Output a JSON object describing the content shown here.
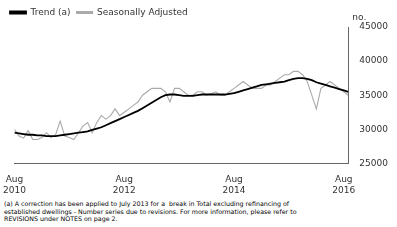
{
  "chart_data": {
    "type": "line",
    "ylabel": "no.",
    "footnote": "(a) A correction has been applied to July 2013 for a  break in Total excluding refinancing of\nestablished dwellings - Number series due to revisions. For more information, please refer to\nREVISIONS under NOTES on page 2.",
    "categories": [
      "Aug\n2010",
      null,
      null,
      null,
      null,
      null,
      null,
      null,
      null,
      null,
      null,
      null,
      null,
      null,
      null,
      null,
      null,
      null,
      null,
      null,
      null,
      null,
      null,
      null,
      "Aug\n2012",
      null,
      null,
      null,
      null,
      null,
      null,
      null,
      null,
      null,
      null,
      null,
      null,
      null,
      null,
      null,
      null,
      null,
      null,
      null,
      null,
      null,
      null,
      null,
      "Aug\n2014",
      null,
      null,
      null,
      null,
      null,
      null,
      null,
      null,
      null,
      null,
      null,
      null,
      null,
      null,
      null,
      null,
      null,
      null,
      null,
      null,
      null,
      null,
      null,
      "Aug\n2016",
      null
    ],
    "series": [
      {
        "name": "Trend (a)",
        "color": "#000000",
        "values": [
          29500,
          29400,
          29300,
          29200,
          29200,
          29100,
          29100,
          29000,
          29000,
          29000,
          29100,
          29200,
          29300,
          29400,
          29500,
          29600,
          29700,
          29900,
          30100,
          30300,
          30600,
          30900,
          31200,
          31500,
          31800,
          32100,
          32400,
          32700,
          33100,
          33500,
          33900,
          34300,
          34700,
          35000,
          35100,
          35100,
          35000,
          34900,
          34900,
          34900,
          35000,
          35100,
          35100,
          35100,
          35100,
          35100,
          35100,
          35200,
          35300,
          35500,
          35700,
          35900,
          36100,
          36300,
          36500,
          36600,
          36700,
          36800,
          36900,
          37000,
          37200,
          37400,
          37500,
          37500,
          37400,
          37200,
          36900,
          36700,
          36500,
          36300,
          36100,
          35900,
          35700,
          35500
        ]
      },
      {
        "name": "Seasonally Adjusted",
        "color": "#aaaaaa",
        "values": [
          30000,
          29000,
          28700,
          29800,
          28500,
          28500,
          28800,
          29500,
          28800,
          29200,
          31200,
          29000,
          28800,
          28500,
          29500,
          30500,
          31000,
          29500,
          31000,
          32000,
          31500,
          32000,
          33000,
          32000,
          32500,
          33000,
          33500,
          34000,
          35000,
          35500,
          36000,
          36000,
          36000,
          35500,
          34000,
          36000,
          36000,
          35500,
          35000,
          35000,
          35500,
          35500,
          35000,
          35200,
          35500,
          35000,
          35000,
          35500,
          36000,
          36500,
          37000,
          36500,
          36000,
          36000,
          36000,
          36500,
          36500,
          37000,
          37500,
          38000,
          38000,
          38500,
          38500,
          38000,
          37000,
          35000,
          33000,
          36000,
          36500,
          37000,
          36500,
          36000,
          35500,
          35000
        ]
      }
    ],
    "ylim": [
      25000,
      45000
    ],
    "yticks": [
      25000,
      30000,
      35000,
      40000,
      45000
    ],
    "grid": false,
    "legend": "upper left"
  }
}
